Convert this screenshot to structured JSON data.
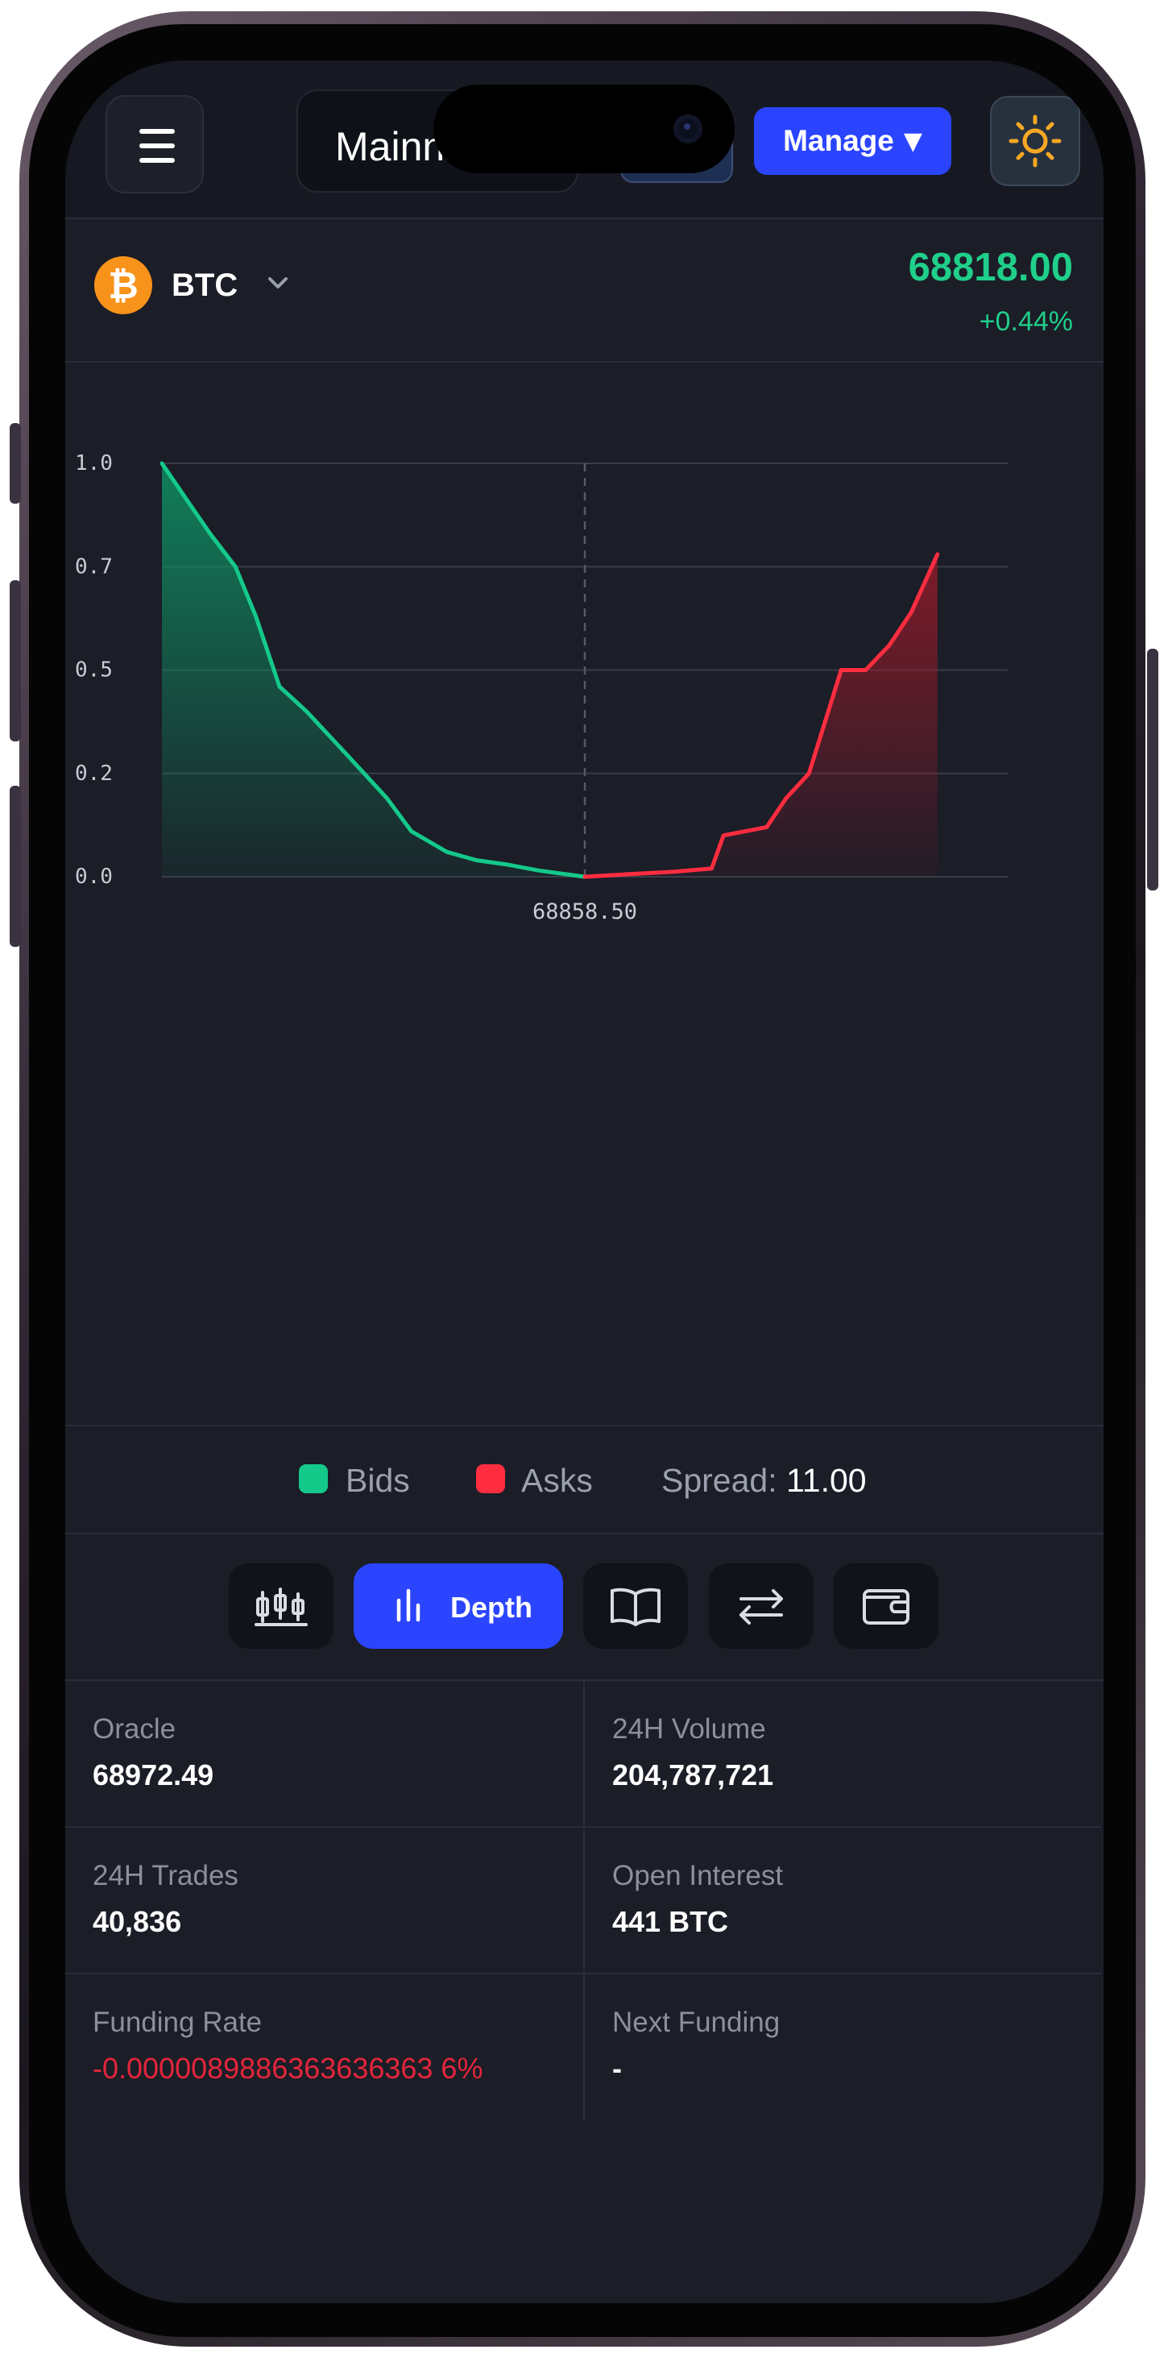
{
  "header": {
    "network_label": "Mainnet",
    "manage_label": "Manage",
    "manage_caret": "▼"
  },
  "ticker": {
    "symbol": "BTC",
    "coin_glyph": "₿",
    "price": "68818.00",
    "change": "+0.44%"
  },
  "colors": {
    "accent": "#2b45ff",
    "positive": "#1fcf8a",
    "bid_line": "#14c98a",
    "ask_line": "#ff2d3f",
    "negative": "#e3263b",
    "background": "#1b1d27"
  },
  "chart_data": {
    "type": "area",
    "y_ticks": [
      "1.0",
      "0.7",
      "0.5",
      "0.2",
      "0.0"
    ],
    "x_tick_labels": [
      "68858.50"
    ],
    "ylim": [
      0,
      1
    ],
    "mid_price_label": "68858.50",
    "grid": true,
    "series": [
      {
        "name": "Bids",
        "color": "#14c98a",
        "x": [
          0,
          0.03,
          0.057,
          0.087,
          0.111,
          0.139,
          0.171,
          0.221,
          0.266,
          0.295,
          0.337,
          0.372,
          0.407,
          0.446,
          0.5
        ],
        "y": [
          1.0,
          0.91,
          0.83,
          0.75,
          0.63,
          0.46,
          0.4,
          0.29,
          0.19,
          0.11,
          0.06,
          0.04,
          0.03,
          0.015,
          0.0
        ]
      },
      {
        "name": "Asks",
        "color": "#ff2d3f",
        "x": [
          0.5,
          0.55,
          0.605,
          0.65,
          0.664,
          0.715,
          0.738,
          0.765,
          0.803,
          0.832,
          0.86,
          0.886,
          0.917
        ],
        "y": [
          0.0,
          0.006,
          0.012,
          0.02,
          0.1,
          0.12,
          0.19,
          0.25,
          0.5,
          0.5,
          0.56,
          0.64,
          0.78
        ]
      }
    ]
  },
  "legend": {
    "bids": "Bids",
    "asks": "Asks",
    "spread_label": "Spread:",
    "spread_value": "11.00"
  },
  "tabs": {
    "depth_label": "Depth",
    "items": [
      "candles-icon",
      "depth-icon",
      "book-icon",
      "swap-icon",
      "wallet-icon"
    ]
  },
  "stats": {
    "oracle_label": "Oracle",
    "oracle_value": "68972.49",
    "volume_label": "24H Volume",
    "volume_value": "204,787,721",
    "trades_label": "24H Trades",
    "trades_value": "40,836",
    "oi_label": "Open Interest",
    "oi_value": "441 BTC",
    "funding_label": "Funding Rate",
    "funding_value": "-0.0000089886363636363 6%",
    "next_funding_label": "Next Funding",
    "next_funding_value": "-"
  }
}
